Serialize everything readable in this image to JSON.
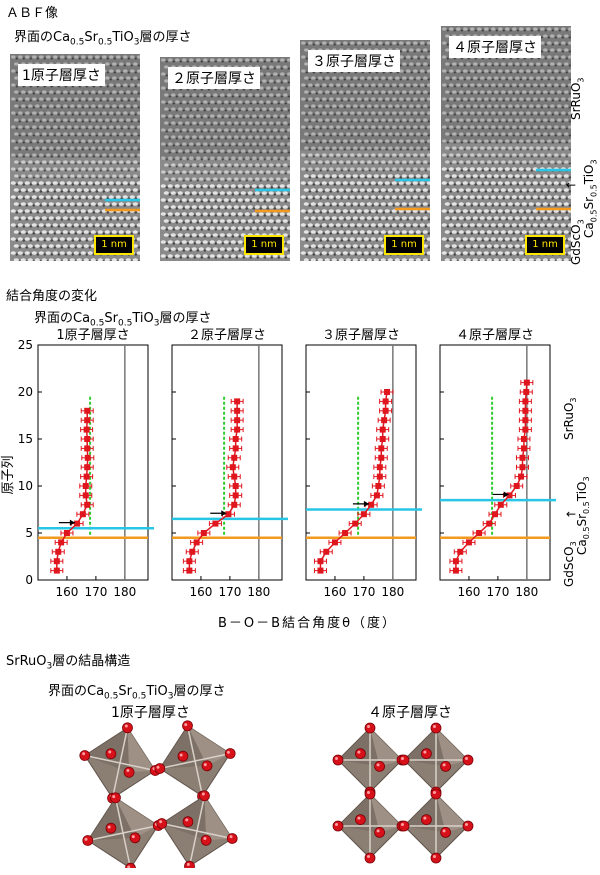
{
  "titles": {
    "abf": "ＡＢＦ像",
    "abf_sub": "界面のCa0.5Sr0.5TiO3層の厚さ",
    "angle": "結合角度の変化",
    "angle_sub": "界面のCa0.5Sr0.5TiO3層の厚さ",
    "struct": "SrRuO3層の結晶構造",
    "struct_sub": "界面のCa0.5Sr0.5TiO3層の厚さ"
  },
  "panels": [
    "1原子層厚さ",
    "２原子層厚さ",
    "３原子層厚さ",
    "４原子層厚さ"
  ],
  "scalebar": "1 nm",
  "side_labels": {
    "top": "SrRuO3",
    "mid": "Ca0.5Sr0.5TiO3",
    "bottom": "GdScO3"
  },
  "colors": {
    "cyan": "#27c6e6",
    "orange": "#f39a1e",
    "red": "#e0161e",
    "green": "#2ecc2e",
    "gray": "#777777"
  },
  "chart_data": {
    "type": "scatter",
    "ylabel": "原子列",
    "xlabel": "B－O－B結合角度θ（度）",
    "xlim": [
      150,
      188
    ],
    "ylim": [
      0,
      25
    ],
    "xticks": [
      160,
      170,
      180
    ],
    "yticks": [
      0,
      5,
      10,
      15,
      20,
      25
    ],
    "orange_line_y": 4.5,
    "reference_lines": {
      "green_x": 168,
      "gray_x": 180
    },
    "panels": [
      {
        "title": "1原子層厚さ",
        "cyan_y": 5.5,
        "x": [
          156.5,
          156.5,
          157.0,
          158.0,
          160.0,
          163.5,
          165.5,
          167.0,
          166.5,
          166.5,
          166.8,
          167.0,
          167.2,
          167.0,
          167.0,
          166.8,
          167.0,
          167.0
        ],
        "y": [
          1,
          2,
          3,
          4,
          5,
          6,
          7,
          8,
          9,
          10,
          11,
          12,
          13,
          14,
          15,
          16,
          17,
          18
        ]
      },
      {
        "title": "２原子層厚さ",
        "cyan_y": 6.5,
        "x": [
          156.0,
          156.0,
          157.0,
          158.5,
          161.0,
          165.0,
          169.5,
          171.5,
          172.0,
          172.0,
          171.5,
          171.0,
          171.5,
          172.0,
          172.0,
          172.5,
          172.5,
          172.5,
          172.5
        ],
        "y": [
          1,
          2,
          3,
          4,
          5,
          6,
          7,
          8,
          9,
          10,
          11,
          12,
          13,
          14,
          15,
          16,
          17,
          18,
          19
        ]
      },
      {
        "title": "３原子層厚さ",
        "cyan_y": 7.5,
        "x": [
          155.0,
          155.0,
          157.0,
          160.0,
          163.5,
          167.0,
          170.0,
          172.5,
          174.5,
          175.0,
          175.5,
          175.5,
          176.0,
          176.0,
          176.5,
          176.5,
          177.0,
          177.5,
          177.5,
          178.0
        ],
        "y": [
          1,
          2,
          3,
          4,
          5,
          6,
          7,
          8,
          9,
          10,
          11,
          12,
          13,
          14,
          15,
          16,
          17,
          18,
          19,
          20
        ]
      },
      {
        "title": "４原子層厚さ",
        "cyan_y": 8.5,
        "x": [
          155.5,
          155.5,
          157.0,
          160.0,
          163.5,
          167.0,
          169.0,
          171.0,
          174.0,
          176.5,
          178.0,
          178.5,
          178.5,
          179.0,
          179.0,
          179.5,
          179.5,
          179.5,
          179.5,
          179.8,
          180.0
        ],
        "y": [
          1,
          2,
          3,
          4,
          5,
          6,
          7,
          8,
          9,
          10,
          11,
          12,
          13,
          14,
          15,
          16,
          17,
          18,
          19,
          20,
          21
        ]
      }
    ]
  },
  "struct_panels": [
    "1原子層厚さ",
    "４原子層厚さ"
  ]
}
